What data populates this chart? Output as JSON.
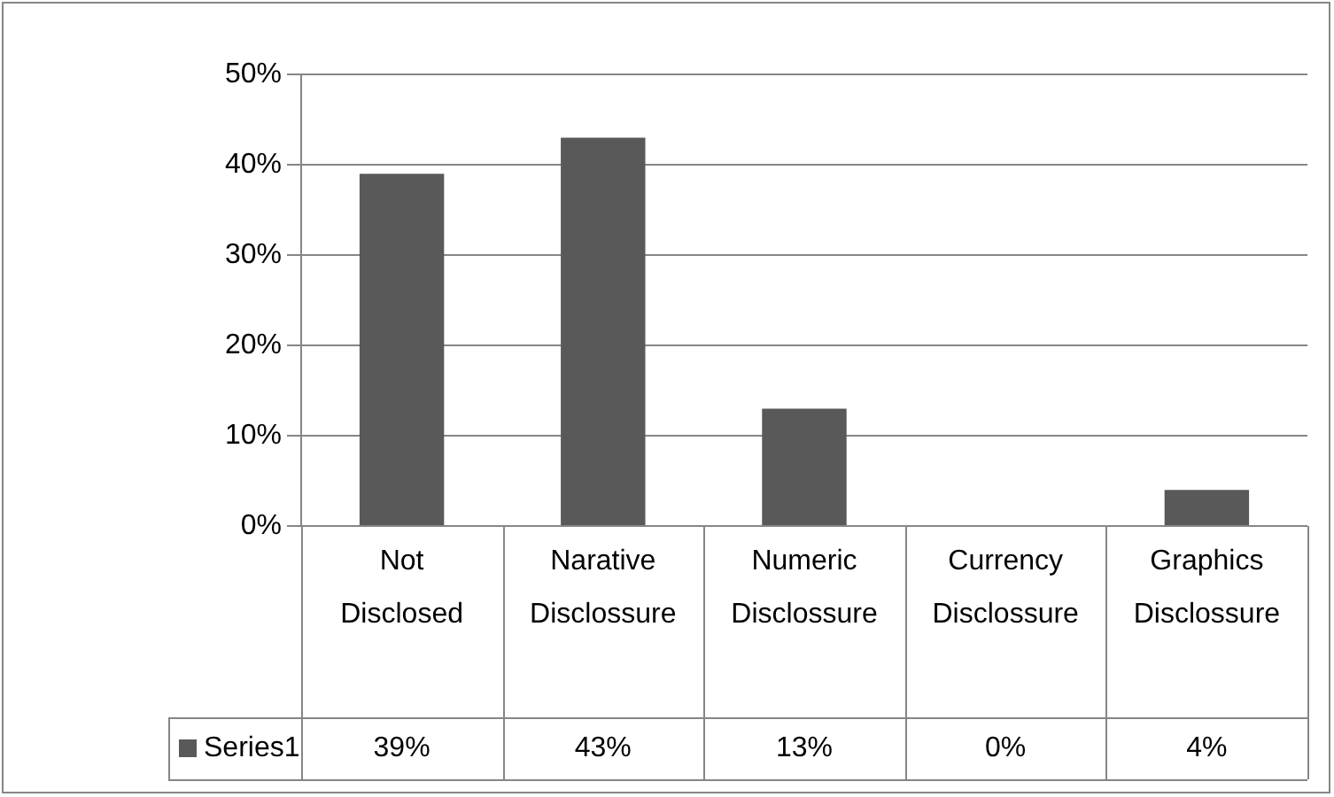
{
  "chart_data": {
    "type": "bar",
    "categories": [
      "Not Disclosed",
      "Narative Disclossure",
      "Numeric Disclossure",
      "Currency Disclossure",
      "Graphics Disclossure"
    ],
    "series": [
      {
        "name": "Series1",
        "color": "#595959",
        "values": [
          39,
          43,
          13,
          0,
          4
        ],
        "value_labels": [
          "39%",
          "43%",
          "13%",
          "0%",
          "4%"
        ]
      }
    ],
    "ylim": [
      0,
      50
    ],
    "yticks": [
      {
        "value": 0,
        "label": "0%"
      },
      {
        "value": 10,
        "label": "10%"
      },
      {
        "value": 20,
        "label": "20%"
      },
      {
        "value": 30,
        "label": "30%"
      },
      {
        "value": 40,
        "label": "40%"
      },
      {
        "value": 50,
        "label": "50%"
      }
    ],
    "grid": "y"
  }
}
